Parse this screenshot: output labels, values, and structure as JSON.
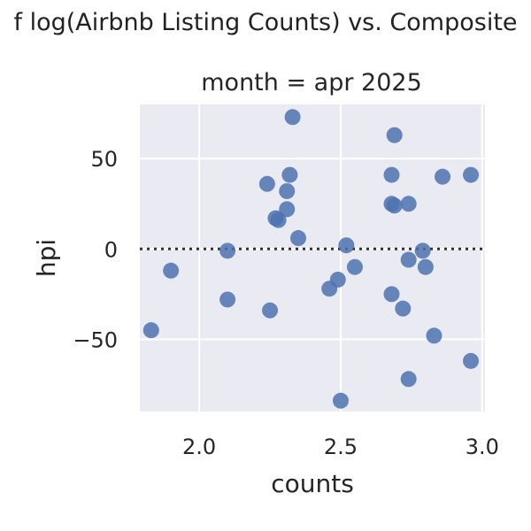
{
  "suptitle": "f log(Airbnb Listing Counts) vs. Composite",
  "colors": {
    "plot_background": "#eaeaf2",
    "grid": "#ffffff",
    "points": "#4c72b0",
    "reference_line": "#333333"
  },
  "chart_data": {
    "type": "scatter",
    "title": "month = apr 2025",
    "xlabel": "counts",
    "ylabel": "hpi",
    "xlim": [
      1.79,
      3.01
    ],
    "ylim": [
      -90,
      80
    ],
    "xticks": [
      2.0,
      2.5,
      3.0
    ],
    "xtick_labels": [
      "2.0",
      "2.5",
      "3.0"
    ],
    "yticks": [
      -50,
      0,
      50
    ],
    "ytick_labels": [
      "−50",
      "0",
      "50"
    ],
    "grid": true,
    "reference_line": {
      "axis": "y",
      "value": 0,
      "style": "dotted"
    },
    "x": [
      2.33,
      2.69,
      2.68,
      2.96,
      2.86,
      2.32,
      2.24,
      2.31,
      2.68,
      2.74,
      2.31,
      2.27,
      2.28,
      2.35,
      2.52,
      2.1,
      1.9,
      2.79,
      2.74,
      2.8,
      2.55,
      2.49,
      2.46,
      2.68,
      2.1,
      2.25,
      2.72,
      1.83,
      2.83,
      2.96,
      2.74,
      2.5,
      2.69
    ],
    "y": [
      73,
      63,
      41,
      41,
      40,
      41,
      36,
      32,
      25,
      25,
      22,
      17,
      16,
      6,
      2,
      -1,
      -12,
      -1,
      -6,
      -10,
      -10,
      -17,
      -22,
      -25,
      -28,
      -34,
      -33,
      -45,
      -48,
      -62,
      -72,
      -84,
      24
    ]
  }
}
